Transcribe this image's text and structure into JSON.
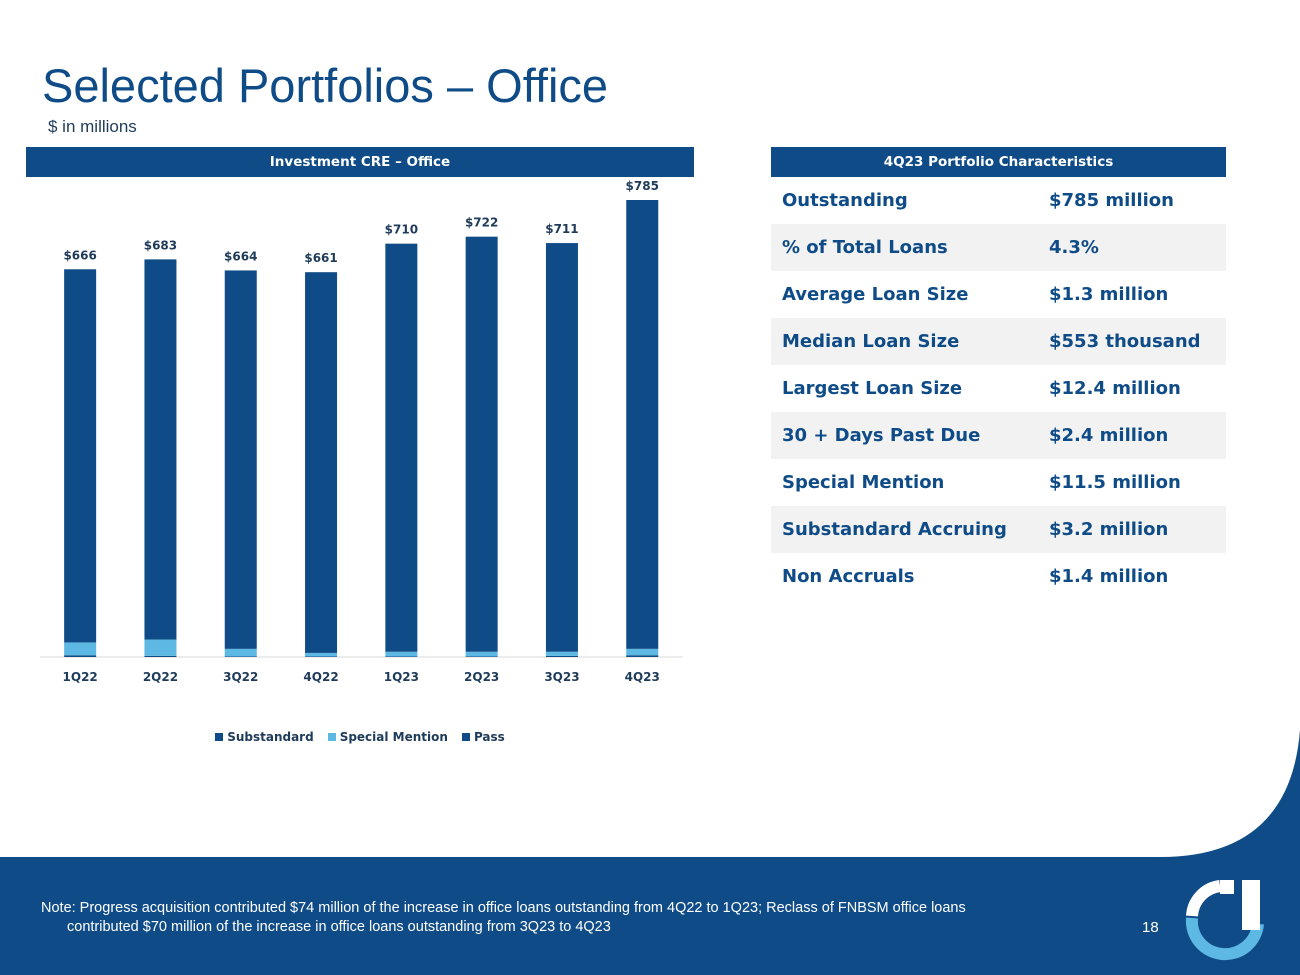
{
  "header": {
    "title": "Selected Portfolios – Office",
    "subtitle": "$ in millions"
  },
  "chart_banner": "Investment CRE – Office",
  "table_banner": "4Q23 Portfolio Characteristics",
  "chart_data": {
    "type": "bar",
    "stacked": true,
    "title": "Investment CRE – Office",
    "categories": [
      "1Q22",
      "2Q22",
      "3Q22",
      "4Q22",
      "1Q23",
      "2Q23",
      "3Q23",
      "4Q23"
    ],
    "totals": [
      666,
      683,
      664,
      661,
      710,
      722,
      711,
      785
    ],
    "total_labels": [
      "$666",
      "$683",
      "$664",
      "$661",
      "$710",
      "$722",
      "$711",
      "$785"
    ],
    "series": [
      {
        "name": "Substandard",
        "color": "#0f4c87",
        "values": [
          3,
          2,
          1,
          1,
          1,
          1,
          2,
          3
        ]
      },
      {
        "name": "Special Mention",
        "color": "#5db8e4",
        "values": [
          22,
          28,
          13,
          6,
          8,
          8,
          7,
          11
        ]
      },
      {
        "name": "Pass",
        "color": "#0f4c87",
        "values": [
          641,
          653,
          650,
          654,
          701,
          713,
          702,
          771
        ]
      }
    ],
    "ylim": [
      0,
      800
    ],
    "xlabel": "",
    "ylabel": "",
    "legend_position": "bottom"
  },
  "characteristics": [
    {
      "label": "Outstanding",
      "value": "$785 million"
    },
    {
      "label": "% of Total Loans",
      "value": "4.3%"
    },
    {
      "label": "Average Loan Size",
      "value": "$1.3 million"
    },
    {
      "label": "Median Loan Size",
      "value": "$553 thousand"
    },
    {
      "label": "Largest Loan Size",
      "value": "$12.4 million"
    },
    {
      "label": "30 + Days Past Due",
      "value": "$2.4 million"
    },
    {
      "label": "Special Mention",
      "value": "$11.5 million"
    },
    {
      "label": "Substandard Accruing",
      "value": "$3.2 million"
    },
    {
      "label": "Non Accruals",
      "value": "$1.4 million"
    }
  ],
  "footer": {
    "note_line1": "Note: Progress acquisition contributed $74 million of the increase in office loans outstanding from 4Q22 to 1Q23; Reclass of FNBSM office loans",
    "note_line2": "contributed $70 million of the increase in office loans outstanding from 3Q23 to 4Q23",
    "page_number": "18"
  },
  "colors": {
    "brand_dark": "#0f4c87",
    "brand_light": "#5db8e4",
    "row_alt": "#f2f2f2"
  }
}
